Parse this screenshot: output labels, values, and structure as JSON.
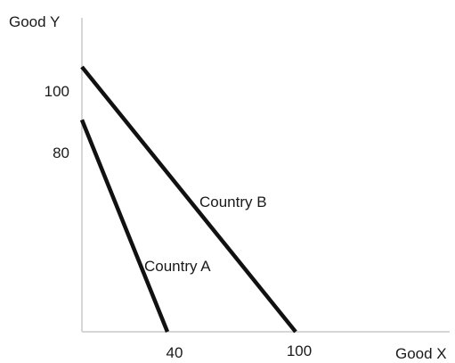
{
  "chart_data": {
    "type": "line",
    "title": "",
    "xlabel": "Good X",
    "ylabel": "Good Y",
    "xlim": [
      0,
      105
    ],
    "ylim": [
      0,
      110
    ],
    "grid": false,
    "legend": "none",
    "x_tick_labels": [
      {
        "value": 40,
        "label": "40"
      },
      {
        "value": 100,
        "label": "100"
      }
    ],
    "y_tick_labels": [
      {
        "value": 80,
        "label": "80"
      },
      {
        "value": 100,
        "label": "100"
      }
    ],
    "series": [
      {
        "name": "Country A",
        "points": [
          [
            0,
            80
          ],
          [
            40,
            0
          ]
        ],
        "color": "#111111"
      },
      {
        "name": "Country B",
        "points": [
          [
            0,
            100
          ],
          [
            100,
            0
          ]
        ],
        "color": "#111111"
      }
    ]
  }
}
